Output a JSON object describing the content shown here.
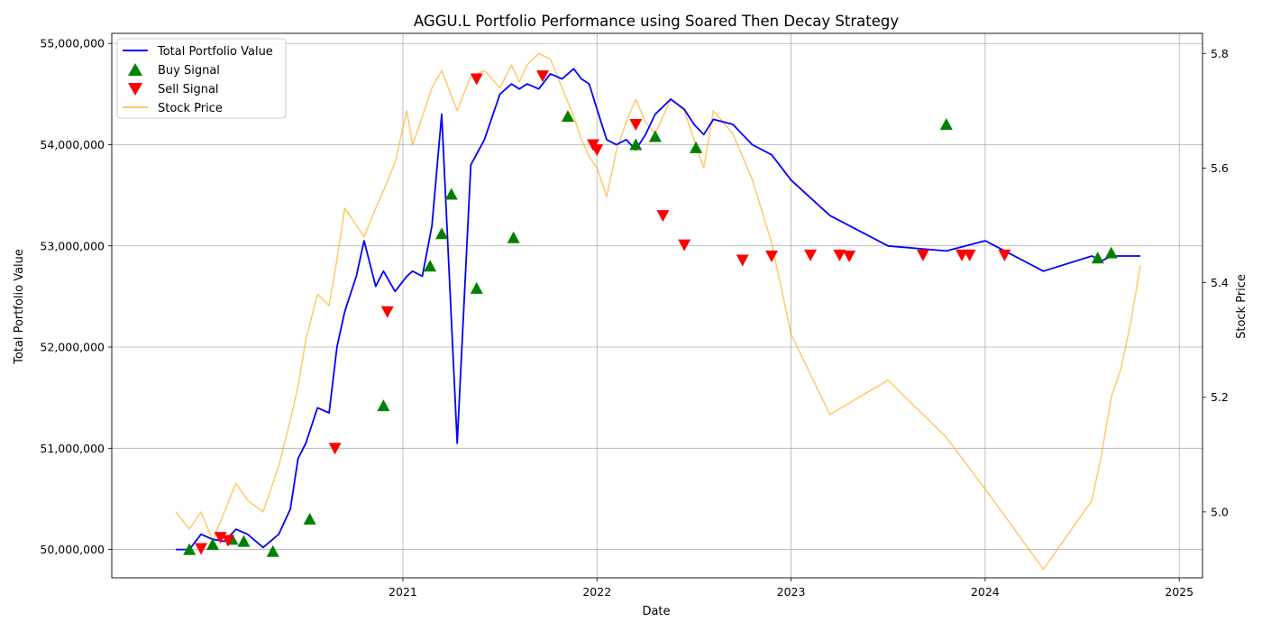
{
  "chart_data": {
    "type": "line",
    "title": "AGGU.L Portfolio Performance using Soared Then Decay Strategy",
    "xlabel": "Date",
    "ylabel": "Total Portfolio Value",
    "y2label": "Stock Price",
    "xlim": [
      2019.5,
      2025.12
    ],
    "ylim": [
      49720000,
      55100000
    ],
    "y2lim": [
      4.885,
      5.835
    ],
    "x_ticks": [
      2021,
      2022,
      2023,
      2024,
      2025
    ],
    "x_tick_labels": [
      "2021",
      "2022",
      "2023",
      "2024",
      "2025"
    ],
    "y_ticks": [
      50000000,
      51000000,
      52000000,
      53000000,
      54000000,
      55000000
    ],
    "y_tick_labels": [
      "50,000,000",
      "51,000,000",
      "52,000,000",
      "53,000,000",
      "54,000,000",
      "55,000,000"
    ],
    "y2_ticks": [
      5.0,
      5.2,
      5.4,
      5.6,
      5.8
    ],
    "y2_tick_labels": [
      "5.0",
      "5.2",
      "5.4",
      "5.6",
      "5.8"
    ],
    "grid": true,
    "legend": {
      "position": "top-left",
      "entries": [
        "Total Portfolio Value",
        "Buy Signal",
        "Sell Signal",
        "Stock Price"
      ]
    },
    "colors": {
      "portfolio": "#0000ff",
      "buy": "#008000",
      "sell": "#ff0000",
      "price": "#ffa500"
    },
    "series": [
      {
        "name": "Total Portfolio Value",
        "axis": "left",
        "x": [
          2019.83,
          2019.9,
          2019.96,
          2020.02,
          2020.08,
          2020.14,
          2020.2,
          2020.28,
          2020.36,
          2020.42,
          2020.46,
          2020.5,
          2020.56,
          2020.62,
          2020.66,
          2020.7,
          2020.76,
          2020.8,
          2020.86,
          2020.9,
          2020.96,
          2021.02,
          2021.05,
          2021.1,
          2021.15,
          2021.2,
          2021.28,
          2021.35,
          2021.42,
          2021.5,
          2021.56,
          2021.6,
          2021.64,
          2021.7,
          2021.76,
          2021.82,
          2021.88,
          2021.92,
          2021.96,
          2022.0,
          2022.05,
          2022.1,
          2022.15,
          2022.2,
          2022.25,
          2022.3,
          2022.38,
          2022.45,
          2022.5,
          2022.55,
          2022.6,
          2022.7,
          2022.8,
          2022.9,
          2023.0,
          2023.2,
          2023.5,
          2023.8,
          2024.0,
          2024.3,
          2024.55,
          2024.6,
          2024.65,
          2024.7,
          2024.75,
          2024.8
        ],
        "values": [
          50000000,
          50000000,
          50150000,
          50100000,
          50080000,
          50200000,
          50150000,
          50020000,
          50150000,
          50400000,
          50900000,
          51050000,
          51400000,
          51350000,
          52000000,
          52350000,
          52700000,
          53050000,
          52600000,
          52750000,
          52550000,
          52700000,
          52750000,
          52700000,
          53200000,
          54300000,
          51050000,
          53800000,
          54050000,
          54500000,
          54600000,
          54550000,
          54600000,
          54550000,
          54700000,
          54650000,
          54750000,
          54650000,
          54600000,
          54350000,
          54050000,
          54000000,
          54050000,
          53950000,
          54100000,
          54300000,
          54450000,
          54350000,
          54200000,
          54100000,
          54250000,
          54200000,
          54000000,
          53900000,
          53650000,
          53300000,
          53000000,
          52950000,
          53050000,
          52750000,
          52900000,
          52850000,
          52900000,
          52900000,
          52900000,
          52900000
        ]
      },
      {
        "name": "Stock Price",
        "axis": "right",
        "x": [
          2019.83,
          2019.9,
          2019.96,
          2020.02,
          2020.08,
          2020.14,
          2020.2,
          2020.28,
          2020.36,
          2020.42,
          2020.46,
          2020.5,
          2020.56,
          2020.62,
          2020.66,
          2020.7,
          2020.76,
          2020.8,
          2020.86,
          2020.9,
          2020.96,
          2021.02,
          2021.05,
          2021.1,
          2021.15,
          2021.2,
          2021.28,
          2021.35,
          2021.42,
          2021.5,
          2021.56,
          2021.6,
          2021.64,
          2021.7,
          2021.76,
          2021.82,
          2021.88,
          2021.92,
          2021.96,
          2022.0,
          2022.05,
          2022.1,
          2022.15,
          2022.2,
          2022.25,
          2022.3,
          2022.38,
          2022.45,
          2022.5,
          2022.55,
          2022.6,
          2022.7,
          2022.8,
          2022.9,
          2023.0,
          2023.2,
          2023.5,
          2023.8,
          2024.0,
          2024.3,
          2024.55,
          2024.6,
          2024.65,
          2024.7,
          2024.75,
          2024.8
        ],
        "values": [
          5.0,
          4.97,
          5.0,
          4.95,
          5.0,
          5.05,
          5.02,
          5.0,
          5.08,
          5.16,
          5.22,
          5.3,
          5.38,
          5.36,
          5.44,
          5.53,
          5.5,
          5.48,
          5.53,
          5.56,
          5.61,
          5.7,
          5.64,
          5.69,
          5.74,
          5.77,
          5.7,
          5.76,
          5.77,
          5.74,
          5.78,
          5.75,
          5.78,
          5.8,
          5.79,
          5.74,
          5.69,
          5.65,
          5.62,
          5.6,
          5.55,
          5.63,
          5.68,
          5.72,
          5.68,
          5.66,
          5.72,
          5.7,
          5.65,
          5.6,
          5.7,
          5.66,
          5.58,
          5.47,
          5.31,
          5.17,
          5.23,
          5.13,
          5.04,
          4.9,
          5.02,
          5.1,
          5.2,
          5.25,
          5.33,
          5.43
        ]
      }
    ],
    "buy_signals": {
      "x": [
        2019.9,
        2020.02,
        2020.12,
        2020.18,
        2020.33,
        2020.52,
        2020.9,
        2021.14,
        2021.2,
        2021.25,
        2021.38,
        2021.57,
        2021.85,
        2022.2,
        2022.3,
        2022.51,
        2023.8,
        2024.58,
        2024.65
      ],
      "values": [
        50000000,
        50050000,
        50100000,
        50080000,
        49980000,
        50300000,
        51420000,
        52800000,
        53120000,
        53510000,
        52580000,
        53080000,
        54280000,
        54000000,
        54080000,
        53970000,
        54200000,
        52880000,
        52930000
      ]
    },
    "sell_signals": {
      "x": [
        2019.96,
        2020.06,
        2020.1,
        2020.65,
        2020.92,
        2021.38,
        2021.72,
        2021.98,
        2022.0,
        2022.2,
        2022.34,
        2022.45,
        2022.75,
        2022.9,
        2023.1,
        2023.25,
        2023.3,
        2023.68,
        2023.88,
        2023.92,
        2024.1
      ],
      "values": [
        50010000,
        50120000,
        50090000,
        51000000,
        52350000,
        54650000,
        54680000,
        54000000,
        53950000,
        54200000,
        53300000,
        53010000,
        52860000,
        52900000,
        52910000,
        52910000,
        52900000,
        52910000,
        52910000,
        52910000,
        52910000
      ]
    }
  }
}
